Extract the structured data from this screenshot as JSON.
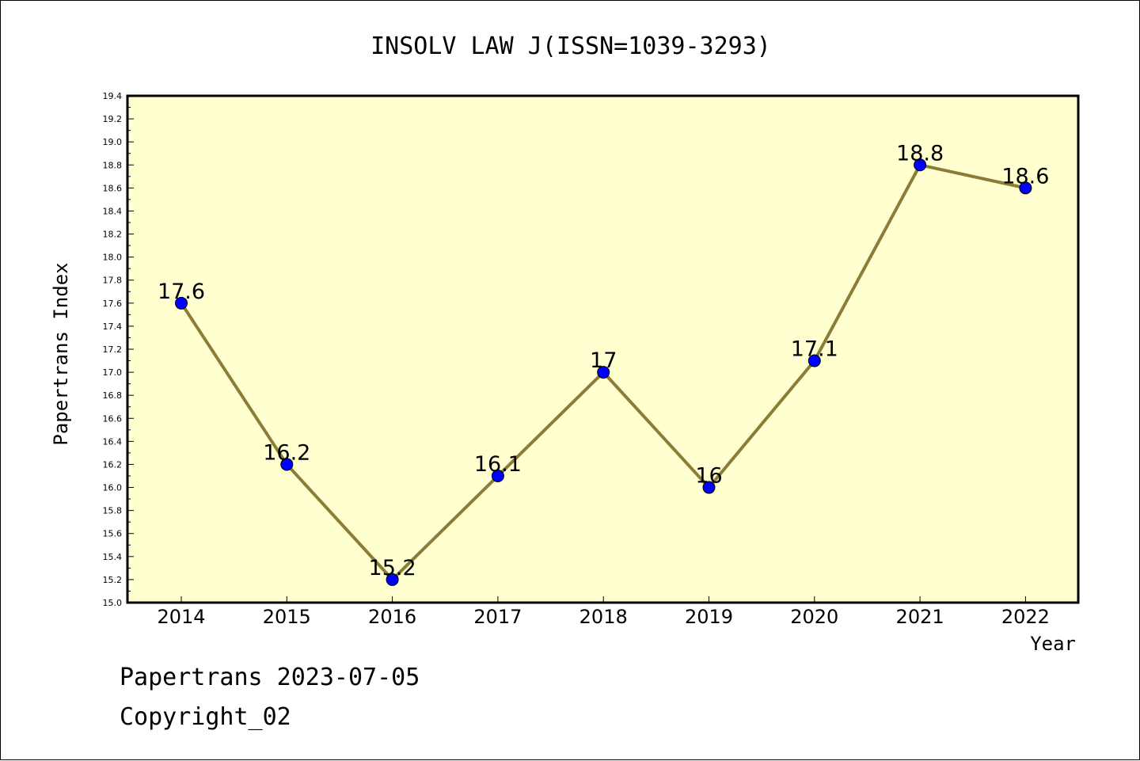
{
  "chart_data": {
    "type": "line",
    "title": "INSOLV LAW J(ISSN=1039-3293)",
    "xlabel": "Year",
    "ylabel": "Papertrans Index",
    "categories": [
      "2014",
      "2015",
      "2016",
      "2017",
      "2018",
      "2019",
      "2020",
      "2021",
      "2022"
    ],
    "series": [
      {
        "values": [
          17.6,
          16.2,
          15.2,
          16.1,
          17.0,
          16.0,
          17.1,
          18.8,
          18.6
        ]
      }
    ],
    "data_labels": [
      "17.6",
      "16.2",
      "15.2",
      "16.1",
      "17",
      "16",
      "17.1",
      "18.8",
      "18.6"
    ],
    "ylim": [
      15.0,
      19.4
    ],
    "yticks": [
      "15.0",
      "15.2",
      "15.4",
      "15.6",
      "15.8",
      "16.0",
      "16.2",
      "16.4",
      "16.6",
      "16.8",
      "17.0",
      "17.2",
      "17.4",
      "17.6",
      "17.8",
      "18.0",
      "18.2",
      "18.4",
      "18.6",
      "18.8",
      "19.0",
      "19.2",
      "19.4"
    ],
    "grid": false,
    "colors": {
      "plot_background": "#ffffd0",
      "line": "#8b7d37",
      "marker": "#0000ff"
    }
  },
  "footer": {
    "line1": "Papertrans 2023-07-05",
    "line2": "Copyright_02"
  }
}
